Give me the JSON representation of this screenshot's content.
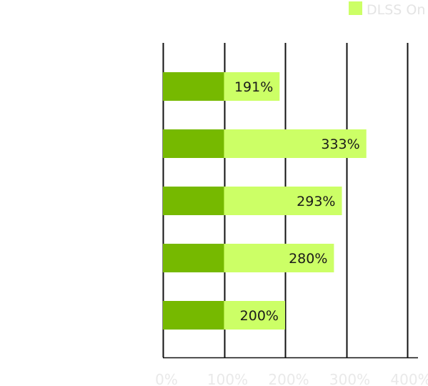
{
  "chart_data": {
    "type": "bar",
    "orientation": "horizontal",
    "stacked": "overlay",
    "categories": [
      "",
      "",
      "",
      "",
      ""
    ],
    "series": [
      {
        "name": "",
        "color": "#76b900",
        "values": [
          100,
          100,
          100,
          100,
          100
        ],
        "show_labels": false
      },
      {
        "name": "DLSS On",
        "color": "#ccff66",
        "values": [
          191,
          333,
          293,
          280,
          200
        ],
        "labels": [
          "191%",
          "333%",
          "293%",
          "280%",
          "200%"
        ],
        "show_labels": true
      }
    ],
    "xlim": [
      0,
      400
    ],
    "xticks": [
      0,
      100,
      200,
      300,
      400
    ],
    "xtick_labels": [
      "0%",
      "100%",
      "200%",
      "300%",
      "400%"
    ],
    "grid": "vertical",
    "legend": "top-right",
    "title": "",
    "xlabel": "",
    "ylabel": ""
  }
}
